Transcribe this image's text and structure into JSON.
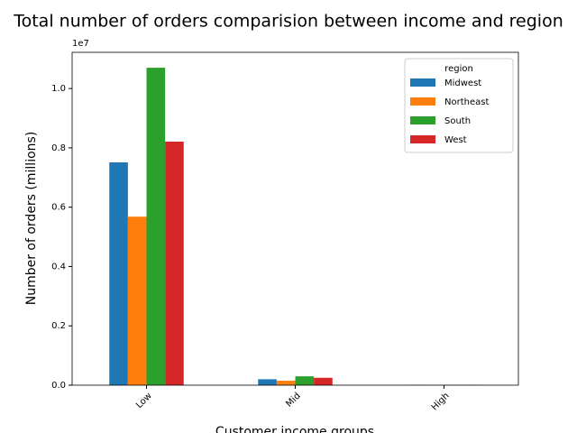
{
  "chart_data": {
    "type": "bar",
    "title": "Total number of orders comparision between income and region",
    "x_label": "Customer income groups",
    "y_label": "Number of orders (millions)",
    "y_offset_label": "1e7",
    "legend_title": "region",
    "legend_position": "upper right",
    "categories": [
      "Low",
      "Mid",
      "High"
    ],
    "series": [
      {
        "name": "Midwest",
        "color": "#1f77b4",
        "values": [
          7510000,
          200000,
          10000
        ]
      },
      {
        "name": "Northeast",
        "color": "#ff7f0e",
        "values": [
          5680000,
          150000,
          10000
        ]
      },
      {
        "name": "South",
        "color": "#2ca02c",
        "values": [
          10700000,
          300000,
          10000
        ]
      },
      {
        "name": "West",
        "color": "#d62728",
        "values": [
          8210000,
          250000,
          10000
        ]
      }
    ],
    "ylim": [
      0,
      11220000
    ],
    "yticks": [
      {
        "value": 0,
        "label": "0.0"
      },
      {
        "value": 2000000,
        "label": "0.2"
      },
      {
        "value": 4000000,
        "label": "0.4"
      },
      {
        "value": 6000000,
        "label": "0.6"
      },
      {
        "value": 8000000,
        "label": "0.8"
      },
      {
        "value": 10000000,
        "label": "1.0"
      }
    ],
    "grid": false
  }
}
